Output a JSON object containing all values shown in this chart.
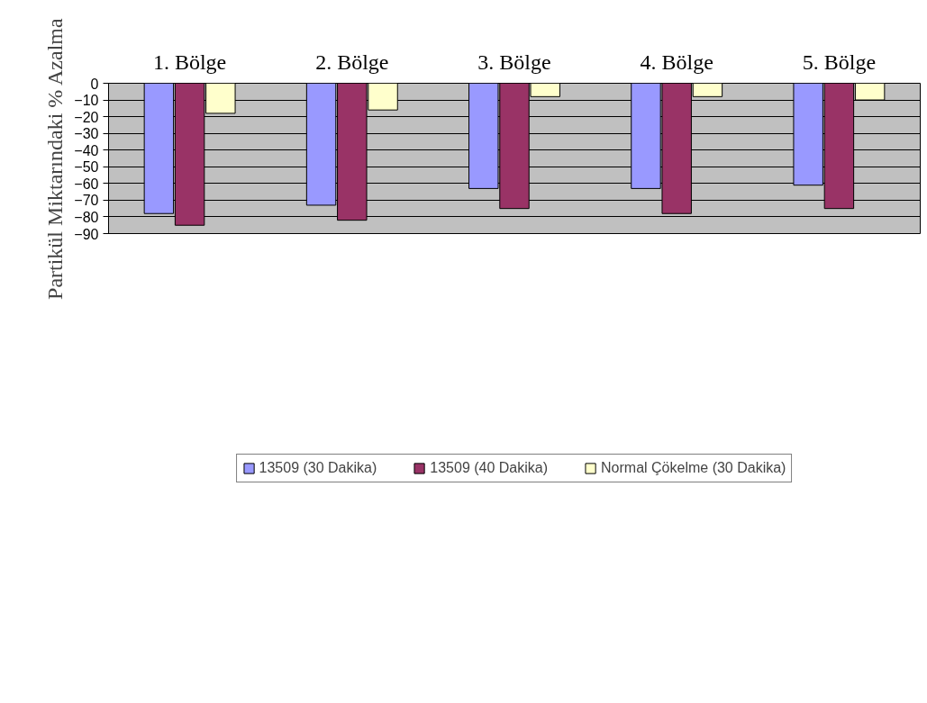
{
  "chart_data": {
    "type": "bar",
    "ylabel": "Partikül Miktarındaki % Azalma",
    "categories": [
      "1. Bölge",
      "2. Bölge",
      "3. Bölge",
      "4. Bölge",
      "5. Bölge"
    ],
    "series": [
      {
        "name": "13509 (30 Dakika)",
        "color": "#9999ff",
        "values": [
          -78,
          -73,
          -63,
          -63,
          -61
        ]
      },
      {
        "name": "13509 (40 Dakika)",
        "color": "#993366",
        "values": [
          -85,
          -82,
          -75,
          -78,
          -75
        ]
      },
      {
        "name": "Normal Çökelme (30 Dakika)",
        "color": "#ffffcc",
        "values": [
          -18,
          -16,
          -8,
          -8,
          -10
        ]
      }
    ],
    "ylim": [
      -90,
      0
    ],
    "yticks": [
      -90,
      -80,
      -70,
      -60,
      -50,
      -40,
      -30,
      -20,
      -10,
      0
    ],
    "grid": "y",
    "legend": "bottom"
  }
}
